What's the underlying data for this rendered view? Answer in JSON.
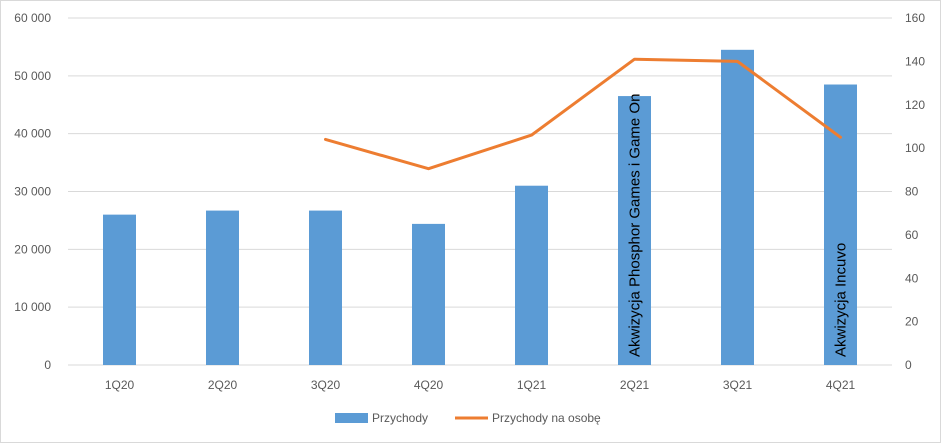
{
  "chart_data": {
    "type": "bar",
    "categories": [
      "1Q20",
      "2Q20",
      "3Q20",
      "4Q20",
      "1Q21",
      "2Q21",
      "3Q21",
      "4Q21"
    ],
    "series": [
      {
        "name": "Przychody",
        "type": "bar",
        "axis": "left",
        "color": "#5b9bd5",
        "values": [
          26000,
          26700,
          26700,
          24400,
          31000,
          46500,
          54500,
          48500
        ]
      },
      {
        "name": "Przychody na osobę",
        "type": "line",
        "axis": "right",
        "color": "#ed7d31",
        "values": [
          null,
          null,
          104,
          90.5,
          106,
          141,
          140,
          105
        ]
      }
    ],
    "y_left": {
      "min": 0,
      "max": 60000,
      "step": 10000,
      "tick_labels": [
        "0",
        "10 000",
        "20 000",
        "30 000",
        "40 000",
        "50 000",
        "60 000"
      ]
    },
    "y_right": {
      "min": 0,
      "max": 160,
      "step": 20,
      "tick_labels": [
        "0",
        "20",
        "40",
        "60",
        "80",
        "100",
        "120",
        "140",
        "160"
      ]
    },
    "annotations": [
      {
        "category": "2Q21",
        "text": "Akwizycja Phosphor  Games i Game On"
      },
      {
        "category": "4Q21",
        "text": "Akwizycja Incuvo"
      }
    ],
    "grid": true,
    "legend_position": "bottom"
  }
}
